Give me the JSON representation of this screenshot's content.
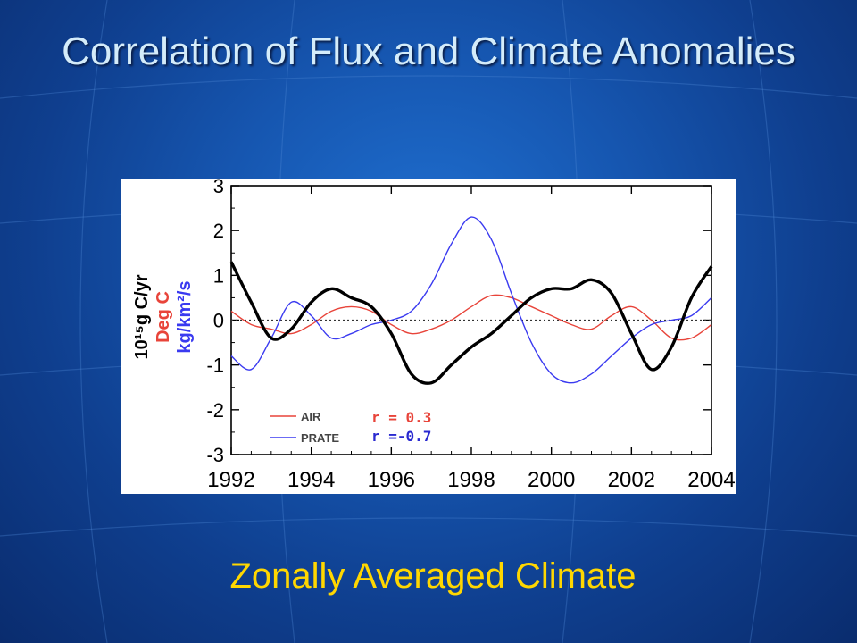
{
  "slide": {
    "title": "Correlation of Flux and Climate Anomalies",
    "caption": "Zonally Averaged Climate"
  },
  "colors": {
    "flux": "#000000",
    "air": "#e8443a",
    "prate": "#3a3af0",
    "caption": "#ffd700",
    "title": "#d4ecfa"
  },
  "chart_data": {
    "type": "line",
    "xlim": [
      1992,
      2004
    ],
    "ylim": [
      -3,
      3
    ],
    "xticks": [
      1992,
      1994,
      1996,
      1998,
      2000,
      2002,
      2004
    ],
    "yticks": [
      -3,
      -2,
      -1,
      0,
      1,
      2,
      3
    ],
    "ylabel_lines": [
      {
        "text": "10¹⁵g C/yr",
        "color": "#000000"
      },
      {
        "text": "Deg C",
        "color": "#e8443a"
      },
      {
        "text": "kg/km²/s",
        "color": "#3a3af0"
      }
    ],
    "zero_line": "dotted",
    "grid": false,
    "legend_position": "bottom-left",
    "series": [
      {
        "name": "",
        "color": "#000000",
        "x": [
          1992,
          1992.5,
          1993,
          1993.5,
          1994,
          1994.5,
          1995,
          1995.5,
          1996,
          1996.5,
          1997,
          1997.5,
          1998,
          1998.5,
          1999,
          1999.5,
          2000,
          2000.5,
          2001,
          2001.5,
          2002,
          2002.5,
          2003,
          2003.5,
          2004
        ],
        "values": [
          1.3,
          0.4,
          -0.4,
          -0.2,
          0.4,
          0.7,
          0.5,
          0.3,
          -0.3,
          -1.2,
          -1.4,
          -1.0,
          -0.6,
          -0.3,
          0.1,
          0.5,
          0.7,
          0.7,
          0.9,
          0.6,
          -0.3,
          -1.1,
          -0.6,
          0.5,
          1.2
        ]
      },
      {
        "name": "AIR",
        "label_r": "r = 0.3",
        "color": "#e8443a",
        "x": [
          1992,
          1992.5,
          1993,
          1993.5,
          1994,
          1994.5,
          1995,
          1995.5,
          1996,
          1996.5,
          1997,
          1997.5,
          1998,
          1998.5,
          1999,
          1999.5,
          2000,
          2000.5,
          2001,
          2001.5,
          2002,
          2002.5,
          2003,
          2003.5,
          2004
        ],
        "values": [
          0.2,
          -0.1,
          -0.2,
          -0.3,
          -0.1,
          0.2,
          0.3,
          0.2,
          -0.1,
          -0.3,
          -0.2,
          0.0,
          0.3,
          0.55,
          0.5,
          0.3,
          0.1,
          -0.1,
          -0.2,
          0.1,
          0.3,
          0.0,
          -0.4,
          -0.4,
          -0.1
        ]
      },
      {
        "name": "PRATE",
        "label_r": "r =-0.7",
        "color": "#3a3af0",
        "x": [
          1992,
          1992.5,
          1993,
          1993.5,
          1994,
          1994.5,
          1995,
          1995.5,
          1996,
          1996.5,
          1997,
          1997.5,
          1998,
          1998.5,
          1999,
          1999.5,
          2000,
          2000.5,
          2001,
          2001.5,
          2002,
          2002.5,
          2003,
          2003.5,
          2004
        ],
        "values": [
          -0.8,
          -1.1,
          -0.4,
          0.4,
          0.1,
          -0.4,
          -0.3,
          -0.1,
          0.0,
          0.2,
          0.8,
          1.7,
          2.3,
          1.8,
          0.6,
          -0.5,
          -1.2,
          -1.4,
          -1.2,
          -0.8,
          -0.4,
          -0.1,
          0.0,
          0.1,
          0.5
        ]
      }
    ]
  }
}
